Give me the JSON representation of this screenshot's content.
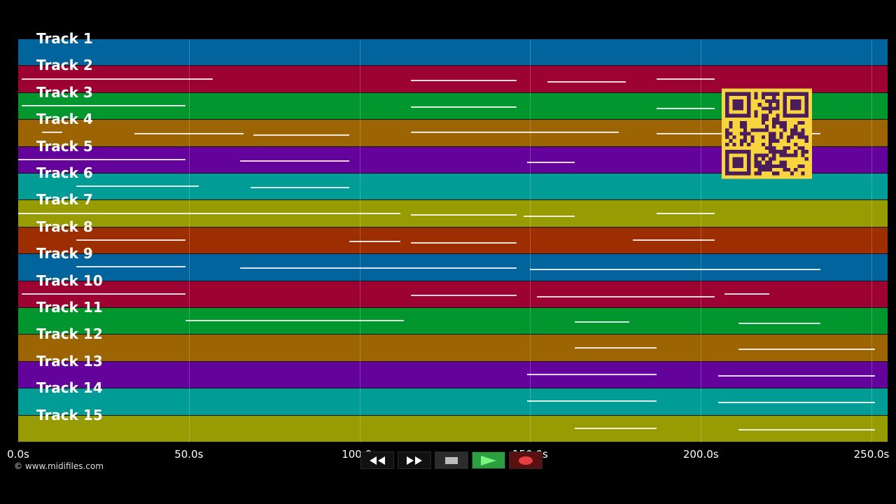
{
  "tracks": [
    {
      "label": "Track 1",
      "color": "#02649c"
    },
    {
      "label": "Track 2",
      "color": "#9c0232"
    },
    {
      "label": "Track 3",
      "color": "#02962f"
    },
    {
      "label": "Track 4",
      "color": "#9c6402"
    },
    {
      "label": "Track 5",
      "color": "#64029c"
    },
    {
      "label": "Track 6",
      "color": "#029c96"
    },
    {
      "label": "Track 7",
      "color": "#969c02"
    },
    {
      "label": "Track 8",
      "color": "#9c2e02"
    },
    {
      "label": "Track 9",
      "color": "#02649c"
    },
    {
      "label": "Track 10",
      "color": "#9c0232"
    },
    {
      "label": "Track 11",
      "color": "#02962f"
    },
    {
      "label": "Track 12",
      "color": "#9c6402"
    },
    {
      "label": "Track 13",
      "color": "#64029c"
    },
    {
      "label": "Track 14",
      "color": "#029c96"
    },
    {
      "label": "Track 15",
      "color": "#969c02"
    }
  ],
  "timeline": {
    "ticks": [
      "0.0s",
      "50.0s",
      "100.0s",
      "150.0s",
      "200.0s",
      "250.0s"
    ],
    "tick_values": [
      0,
      50,
      100,
      150,
      200,
      250
    ],
    "max_seconds": 255
  },
  "note_segments_seconds": [
    [],
    [
      [
        1,
        57
      ],
      [
        115,
        146
      ],
      [
        155,
        178
      ],
      [
        187,
        204
      ]
    ],
    [
      [
        1,
        49
      ],
      [
        115,
        146
      ],
      [
        187,
        204
      ]
    ],
    [
      [
        7,
        13
      ],
      [
        34,
        66
      ],
      [
        69,
        97
      ],
      [
        115,
        176
      ],
      [
        187,
        235
      ]
    ],
    [
      [
        0,
        49
      ],
      [
        65,
        97
      ],
      [
        149,
        163
      ]
    ],
    [
      [
        17,
        53
      ],
      [
        68,
        97
      ]
    ],
    [
      [
        0,
        112
      ],
      [
        115,
        146
      ],
      [
        148,
        163
      ],
      [
        187,
        204
      ]
    ],
    [
      [
        17,
        49
      ],
      [
        97,
        112
      ],
      [
        115,
        146
      ],
      [
        180,
        204
      ]
    ],
    [
      [
        17,
        49
      ],
      [
        65,
        146
      ],
      [
        150,
        235
      ]
    ],
    [
      [
        1,
        49
      ],
      [
        115,
        146
      ],
      [
        152,
        204
      ],
      [
        207,
        220
      ]
    ],
    [
      [
        49,
        113
      ],
      [
        163,
        179
      ],
      [
        211,
        235
      ]
    ],
    [
      [
        163,
        187
      ],
      [
        211,
        251
      ]
    ],
    [
      [
        149,
        187
      ],
      [
        205,
        251
      ]
    ],
    [
      [
        149,
        187
      ],
      [
        205,
        251
      ]
    ],
    [
      [
        163,
        187
      ],
      [
        211,
        251
      ]
    ]
  ],
  "copyright": "© www.midifiles.com",
  "transport": {
    "rewind": "rewind-icon",
    "fast_forward": "fast-forward-icon",
    "stop": "stop-icon",
    "play": "play-icon",
    "record": "record-icon",
    "play_color": "#2c9f3f",
    "record_color": "#d93030"
  },
  "qr_colors": {
    "background": "#f8d53e",
    "modules": "#4b1d5a"
  }
}
